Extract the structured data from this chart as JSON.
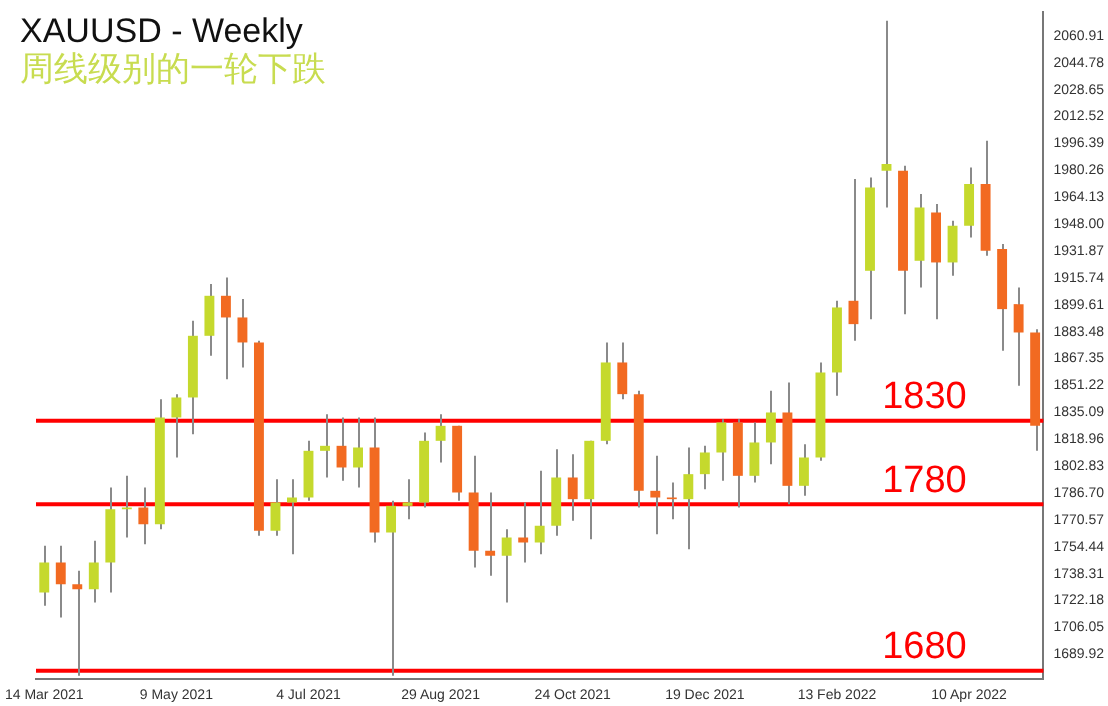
{
  "chart_data": {
    "type": "candlestick",
    "title": "XAUUSD - Weekly",
    "subtitle": "周线级别的一轮下跌",
    "categories": [
      "14 Mar 2021",
      null,
      null,
      null,
      null,
      null,
      null,
      null,
      "9 May 2021",
      null,
      null,
      null,
      null,
      null,
      null,
      null,
      "4 Jul 2021",
      null,
      null,
      null,
      null,
      null,
      null,
      null,
      "29 Aug 2021",
      null,
      null,
      null,
      null,
      null,
      null,
      null,
      "24 Oct 2021",
      null,
      null,
      null,
      null,
      null,
      null,
      null,
      "19 Dec 2021",
      null,
      null,
      null,
      null,
      null,
      null,
      null,
      "13 Feb 2022",
      null,
      null,
      null,
      null,
      null,
      null,
      null,
      "10 Apr 2022",
      null,
      null,
      null,
      null
    ],
    "ohlc": [
      [
        1727,
        1755,
        1719,
        1745
      ],
      [
        1745,
        1755,
        1712,
        1732
      ],
      [
        1732,
        1740,
        1677,
        1729
      ],
      [
        1729,
        1758,
        1721,
        1745
      ],
      [
        1745,
        1790,
        1727,
        1777
      ],
      [
        1777,
        1797,
        1760,
        1778
      ],
      [
        1778,
        1790,
        1756,
        1768
      ],
      [
        1768,
        1843,
        1765,
        1832
      ],
      [
        1832,
        1846,
        1808,
        1844
      ],
      [
        1844,
        1890,
        1822,
        1881
      ],
      [
        1881,
        1912,
        1869,
        1905
      ],
      [
        1905,
        1916,
        1855,
        1892
      ],
      [
        1892,
        1903,
        1862,
        1877
      ],
      [
        1877,
        1878,
        1761,
        1764
      ],
      [
        1764,
        1795,
        1761,
        1781
      ],
      [
        1781,
        1795,
        1750,
        1784
      ],
      [
        1784,
        1818,
        1782,
        1812
      ],
      [
        1812,
        1834,
        1796,
        1815
      ],
      [
        1815,
        1832,
        1794,
        1802
      ],
      [
        1802,
        1832,
        1790,
        1814
      ],
      [
        1814,
        1832,
        1757,
        1763
      ],
      [
        1763,
        1782,
        1677,
        1779
      ],
      [
        1779,
        1795,
        1771,
        1781
      ],
      [
        1781,
        1823,
        1778,
        1818
      ],
      [
        1818,
        1834,
        1805,
        1827
      ],
      [
        1827,
        1827,
        1782,
        1787
      ],
      [
        1787,
        1809,
        1742,
        1752
      ],
      [
        1752,
        1787,
        1737,
        1749
      ],
      [
        1749,
        1765,
        1721,
        1760
      ],
      [
        1760,
        1781,
        1745,
        1757
      ],
      [
        1757,
        1800,
        1750,
        1767
      ],
      [
        1767,
        1813,
        1761,
        1796
      ],
      [
        1796,
        1810,
        1770,
        1783
      ],
      [
        1783,
        1818,
        1759,
        1818
      ],
      [
        1818,
        1877,
        1816,
        1865
      ],
      [
        1865,
        1877,
        1843,
        1846
      ],
      [
        1846,
        1848,
        1778,
        1788
      ],
      [
        1788,
        1809,
        1762,
        1784
      ],
      [
        1784,
        1793,
        1771,
        1783
      ],
      [
        1783,
        1814,
        1753,
        1798
      ],
      [
        1798,
        1815,
        1789,
        1811
      ],
      [
        1811,
        1831,
        1794,
        1829
      ],
      [
        1829,
        1831,
        1778,
        1797
      ],
      [
        1797,
        1829,
        1793,
        1817
      ],
      [
        1817,
        1848,
        1804,
        1835
      ],
      [
        1835,
        1853,
        1780,
        1791
      ],
      [
        1791,
        1816,
        1785,
        1808
      ],
      [
        1808,
        1865,
        1806,
        1859
      ],
      [
        1859,
        1902,
        1845,
        1898
      ],
      [
        1902,
        1975,
        1878,
        1888
      ],
      [
        1920,
        1976,
        1891,
        1970
      ],
      [
        1980,
        2070,
        1958,
        1984
      ],
      [
        1980,
        1983,
        1894,
        1920
      ],
      [
        1926,
        1966,
        1910,
        1958
      ],
      [
        1955,
        1960,
        1891,
        1925
      ],
      [
        1925,
        1950,
        1917,
        1947
      ],
      [
        1947,
        1982,
        1940,
        1972
      ],
      [
        1972,
        1998,
        1929,
        1932
      ],
      [
        1933,
        1936,
        1872,
        1897
      ],
      [
        1900,
        1910,
        1851,
        1883
      ],
      [
        1883,
        1885,
        1812,
        1827
      ]
    ],
    "colors": [
      "#c5d92d",
      "#f26a21",
      "#f26a21",
      "#c5d92d",
      "#c5d92d",
      "#c5d92d",
      "#f26a21",
      "#c5d92d",
      "#c5d92d",
      "#c5d92d",
      "#c5d92d",
      "#f26a21",
      "#f26a21",
      "#f26a21",
      "#c5d92d",
      "#c5d92d",
      "#c5d92d",
      "#c5d92d",
      "#f26a21",
      "#c5d92d",
      "#f26a21",
      "#c5d92d",
      "#c5d92d",
      "#c5d92d",
      "#c5d92d",
      "#f26a21",
      "#f26a21",
      "#f26a21",
      "#c5d92d",
      "#f26a21",
      "#c5d92d",
      "#c5d92d",
      "#f26a21",
      "#c5d92d",
      "#c5d92d",
      "#f26a21",
      "#f26a21",
      "#f26a21",
      "#f26a21",
      "#c5d92d",
      "#c5d92d",
      "#c5d92d",
      "#f26a21",
      "#c5d92d",
      "#c5d92d",
      "#f26a21",
      "#c5d92d",
      "#c5d92d",
      "#c5d92d",
      "#f26a21",
      "#c5d92d",
      "#c5d92d",
      "#f26a21",
      "#c5d92d",
      "#f26a21",
      "#c5d92d",
      "#c5d92d",
      "#f26a21",
      "#f26a21",
      "#f26a21",
      "#f26a21"
    ],
    "ylim": [
      1675,
      2075
    ],
    "yticks": [
      2060.91,
      2044.78,
      2028.65,
      2012.52,
      1996.39,
      1980.26,
      1964.13,
      {
        "value": 1948,
        "label": "1948.00"
      },
      1931.87,
      1915.74,
      1899.61,
      1883.48,
      1867.35,
      1851.22,
      1835.09,
      1818.96,
      1802.83,
      {
        "value": 1786.7,
        "label": "1786.70"
      },
      1770.57,
      1754.44,
      1738.31,
      1722.18,
      1706.05,
      1689.92
    ],
    "ref_lines": [
      {
        "axis": "y",
        "value": 1830,
        "label": "1830",
        "color": "#ff0000"
      },
      {
        "axis": "y",
        "value": 1780,
        "label": "1780",
        "color": "#ff0000"
      },
      {
        "axis": "y",
        "value": 1680,
        "label": "1680",
        "color": "#ff0000"
      }
    ],
    "legend": false,
    "grid": false
  }
}
